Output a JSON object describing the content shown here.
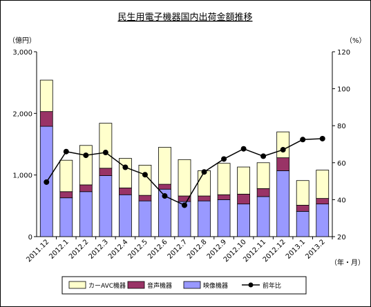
{
  "chart_data": {
    "type": "bar",
    "title": "民生用電子機器国内出荷金額推移",
    "ylabel_left": "（億円）",
    "ylabel_right": "（%）",
    "xlabel": "（年・月）",
    "categories": [
      "2011.12",
      "2012.1",
      "2012.2",
      "2012.3",
      "2012.4",
      "2012.5",
      "2012.6",
      "2012.7",
      "2012.8",
      "2012.9",
      "2012.10",
      "2012.11",
      "2012.12",
      "2013.1",
      "2013.2"
    ],
    "ylim_left": [
      0,
      3000
    ],
    "yticks_left": [
      "0",
      "1,000",
      "2,000",
      "3,000"
    ],
    "ylim_right": [
      20,
      120
    ],
    "yticks_right": [
      "20",
      "40",
      "60",
      "80",
      "100",
      "120"
    ],
    "series": [
      {
        "name": "映像機器",
        "values": [
          1790,
          630,
          730,
          990,
          680,
          580,
          770,
          570,
          580,
          600,
          530,
          650,
          1070,
          410,
          530
        ],
        "color": "#9999ff"
      },
      {
        "name": "音声機器",
        "values": [
          240,
          100,
          110,
          120,
          110,
          90,
          80,
          90,
          80,
          80,
          160,
          130,
          210,
          100,
          90
        ],
        "color": "#993366"
      },
      {
        "name": "カーAVC機器",
        "values": [
          510,
          510,
          640,
          730,
          480,
          490,
          600,
          590,
          410,
          510,
          440,
          420,
          420,
          400,
          460
        ],
        "color": "#ffffcc"
      },
      {
        "name": "前年比",
        "type": "line",
        "values": [
          49.5,
          66,
          64,
          65.5,
          57.5,
          53.5,
          42,
          37,
          55,
          62,
          67.5,
          63.5,
          67,
          72.5,
          73
        ],
        "color": "#000000"
      }
    ],
    "legend": [
      "カーAVC機器",
      "音声機器",
      "映像機器",
      "前年比"
    ],
    "legend_position": "bottom",
    "grid": false
  }
}
